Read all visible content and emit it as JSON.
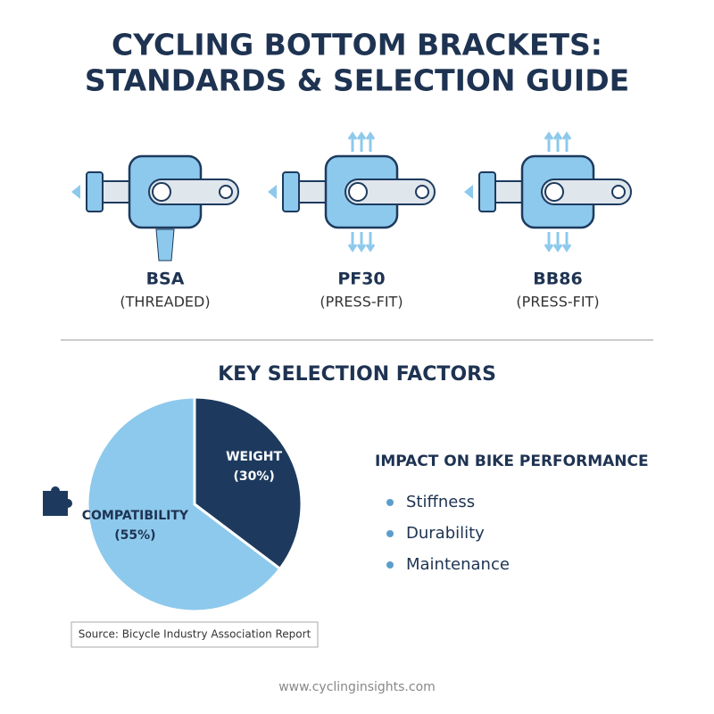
{
  "title": [
    "CYCLING BOTTOM BRACKETS:",
    "STANDARDS & SELECTION GUIDE"
  ],
  "brackets": [
    {
      "name": "BSA",
      "type": "(THREADED)"
    },
    {
      "name": "PF30",
      "type": "(PRESS-FIT)"
    },
    {
      "name": "BB86",
      "type": "(PRESS-FIT)"
    }
  ],
  "section_title": "KEY SELECTION FACTORS",
  "chart_data": {
    "type": "pie",
    "categories": [
      "COMPATIBILITY",
      "WEIGHT"
    ],
    "values": [
      55,
      30
    ],
    "value_labels": [
      "(55%)",
      "(30%)"
    ],
    "colors": [
      "#8dc9ec",
      "#1d3a5e"
    ]
  },
  "impact": {
    "title": "IMPACT ON BIKE PERFORMANCE",
    "items": [
      "Stiffness",
      "Durability",
      "Maintenance"
    ]
  },
  "source": "Source: Bicycle Industry Association Report",
  "footer": "www.cyclinginsights.com"
}
